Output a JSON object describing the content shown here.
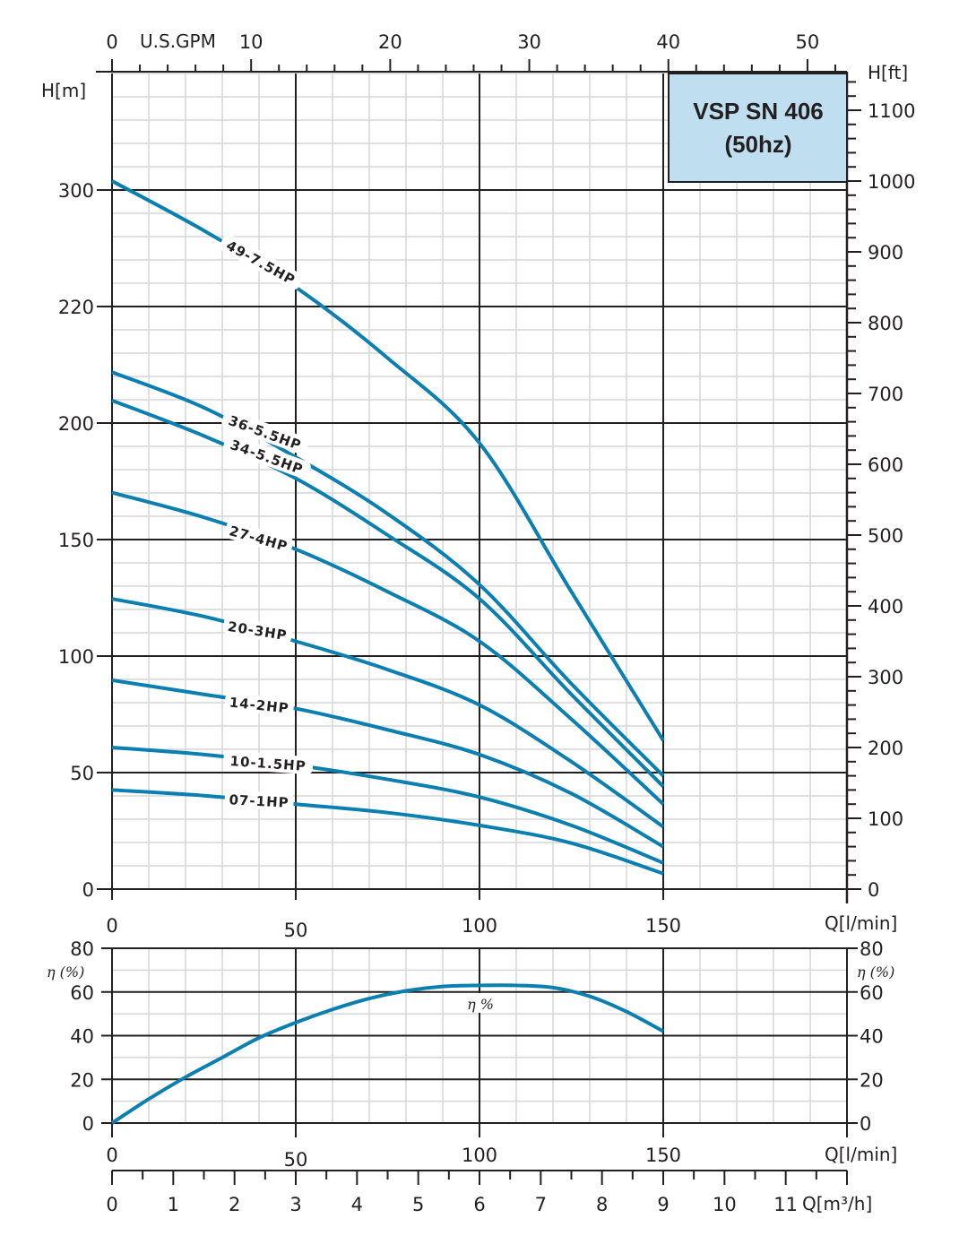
{
  "title_box": {
    "line1": "VSP SN 406",
    "line2": "(50hz)",
    "fill": "#bfdff0"
  },
  "colors": {
    "curve": "#0a7fb0",
    "major_grid": "#231f20",
    "minor_grid": "#d6d6d6",
    "text": "#231f20"
  },
  "axes": {
    "top_gpm": {
      "label": "U.S.GPM",
      "ticks": [
        "0",
        "10",
        "20",
        "30",
        "40",
        "50"
      ]
    },
    "left_h_m": {
      "label": "H[m]",
      "ticks": [
        "0",
        "50",
        "100",
        "150",
        "200",
        "220",
        "300"
      ]
    },
    "right_h_ft": {
      "label": "H[ft]",
      "ticks": [
        "0",
        "100",
        "200",
        "300",
        "400",
        "500",
        "600",
        "700",
        "800",
        "900",
        "1000",
        "1100"
      ]
    },
    "q_lmin": {
      "label": "Q[l/min]",
      "ticks": [
        "0",
        "50",
        "100",
        "150"
      ]
    },
    "eta": {
      "label": "η (%)",
      "ticks": [
        "0",
        "20",
        "40",
        "60",
        "80"
      ]
    },
    "q_m3h": {
      "label": "Q[m³/h]",
      "ticks": [
        "0",
        "1",
        "2",
        "3",
        "4",
        "5",
        "6",
        "7",
        "8",
        "9",
        "10",
        "11"
      ]
    }
  },
  "chart_data": [
    {
      "type": "line",
      "title": "VSP SN 406 (50hz)",
      "xlabel": "Q[l/min]",
      "ylabel": "H[m]",
      "secondary_xlabel": "U.S.GPM",
      "secondary_ylabel": "H[ft]",
      "xlim": [
        0,
        200
      ],
      "ylim_ft": [
        0,
        1150
      ],
      "grid": true,
      "note": "Left H[m] tick labels are 0,50,100,150,200,220,300 spaced evenly; values below expressed in feet read from right axis",
      "x": [
        0,
        25,
        50,
        75,
        100,
        125,
        150
      ],
      "series": [
        {
          "name": "49-7.5HP",
          "label": "49-7.5HP",
          "values_ft": [
            1000,
            930,
            850,
            750,
            630,
            420,
            210
          ]
        },
        {
          "name": "36-5.5HP",
          "label": "36-5.5HP",
          "values_ft": [
            730,
            680,
            610,
            530,
            430,
            290,
            160
          ]
        },
        {
          "name": "34-5.5HP",
          "label": "34-5.5HP",
          "values_ft": [
            690,
            640,
            580,
            500,
            410,
            275,
            145
          ]
        },
        {
          "name": "27-4HP",
          "label": "27-4HP",
          "values_ft": [
            560,
            525,
            480,
            420,
            350,
            240,
            120
          ]
        },
        {
          "name": "20-3HP",
          "label": "20-3HP",
          "values_ft": [
            410,
            385,
            350,
            310,
            260,
            180,
            88
          ]
        },
        {
          "name": "14-2HP",
          "label": "14-2HP",
          "values_ft": [
            295,
            275,
            255,
            225,
            190,
            135,
            60
          ]
        },
        {
          "name": "10-1.5HP",
          "label": "10-1.5HP",
          "values_ft": [
            200,
            190,
            175,
            155,
            130,
            90,
            37
          ]
        },
        {
          "name": "07-1HP",
          "label": "07-1HP",
          "values_ft": [
            140,
            132,
            120,
            108,
            90,
            65,
            22
          ]
        }
      ]
    },
    {
      "type": "line",
      "title": "Efficiency",
      "xlabel": "Q[l/min]",
      "secondary_xlabel": "Q[m³/h]",
      "ylabel": "η (%)",
      "xlim": [
        0,
        200
      ],
      "ylim": [
        0,
        80
      ],
      "grid": true,
      "x": [
        0,
        10,
        20,
        30,
        40,
        50,
        60,
        70,
        80,
        90,
        100,
        110,
        120,
        130,
        140,
        150
      ],
      "series": [
        {
          "name": "η %",
          "values": [
            0,
            11,
            21,
            30,
            39,
            46,
            52,
            57,
            60.5,
            62.5,
            63,
            63,
            62,
            58,
            51,
            42
          ]
        }
      ]
    }
  ],
  "labels": {
    "eta_curve": "η %"
  }
}
